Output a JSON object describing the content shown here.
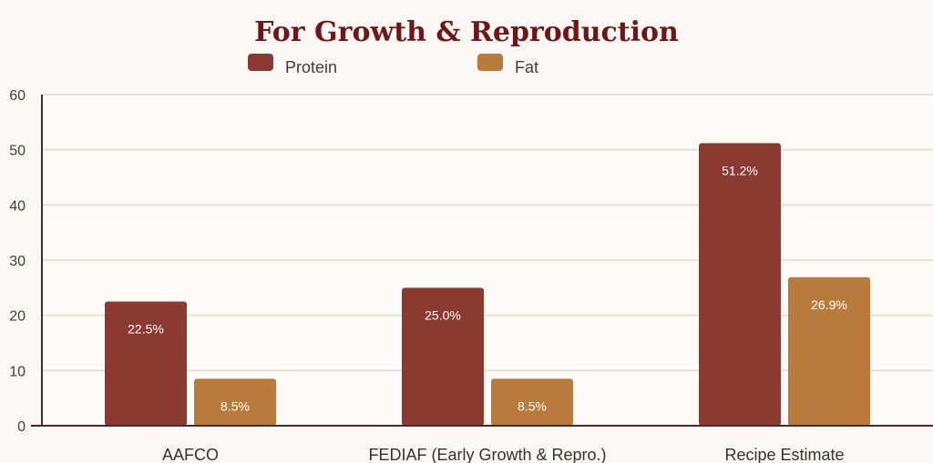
{
  "chart_data": {
    "type": "bar",
    "title": "For Growth & Reproduction",
    "xlabel": "",
    "ylabel": "",
    "ylim": [
      0,
      60
    ],
    "yticks": [
      0,
      10,
      20,
      30,
      40,
      50,
      60
    ],
    "grid": true,
    "legend_position": "top",
    "categories": [
      "AAFCO",
      "FEDIAF (Early Growth & Repro.)",
      "Recipe Estimate"
    ],
    "series": [
      {
        "name": "Protein",
        "color": "#8b3a31",
        "values": [
          22.5,
          25.0,
          51.2
        ],
        "labels": [
          "22.5%",
          "25.0%",
          "51.2%"
        ]
      },
      {
        "name": "Fat",
        "color": "#b87b3b",
        "values": [
          8.5,
          8.5,
          26.9
        ],
        "labels": [
          "8.5%",
          "8.5%",
          "26.9%"
        ]
      }
    ]
  }
}
